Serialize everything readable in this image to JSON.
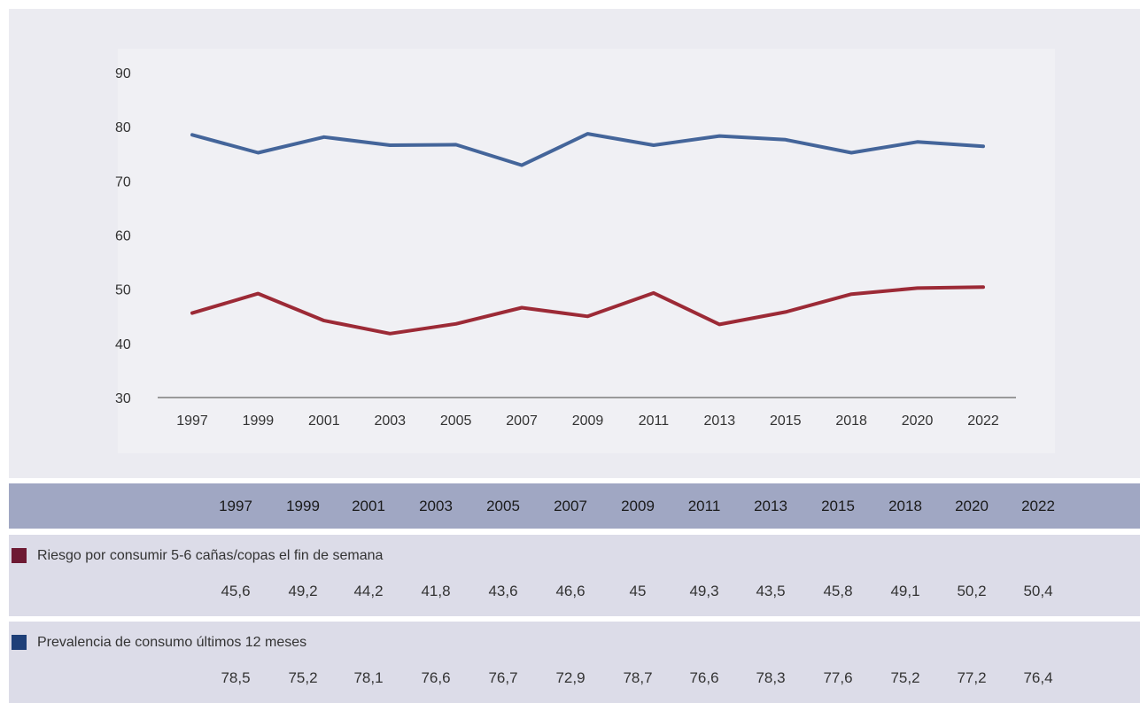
{
  "chart_data": {
    "type": "line",
    "x": [
      "1997",
      "1999",
      "2001",
      "2003",
      "2005",
      "2007",
      "2009",
      "2011",
      "2013",
      "2015",
      "2018",
      "2020",
      "2022"
    ],
    "ylim": [
      30,
      90
    ],
    "yticks": [
      "30",
      "40",
      "50",
      "60",
      "70",
      "80",
      "90"
    ],
    "grid": false,
    "series": [
      {
        "name": "Riesgo por consumir 5-6 cañas/copas el fin de semana",
        "color": "#9c2a36",
        "values": [
          45.6,
          49.2,
          44.2,
          41.8,
          43.6,
          46.6,
          45,
          49.3,
          43.5,
          45.8,
          49.1,
          50.2,
          50.4
        ]
      },
      {
        "name": "Prevalencia de consumo últimos 12 meses",
        "color": "#44659a",
        "values": [
          78.5,
          75.2,
          78.1,
          76.6,
          76.7,
          72.9,
          78.7,
          76.6,
          78.3,
          77.6,
          75.2,
          77.2,
          76.4
        ]
      }
    ]
  },
  "table": {
    "years": [
      "1997",
      "1999",
      "2001",
      "2003",
      "2005",
      "2007",
      "2009",
      "2011",
      "2013",
      "2015",
      "2018",
      "2020",
      "2022"
    ],
    "rows": [
      {
        "label": "Riesgo por consumir 5-6 cañas/copas el fin de semana",
        "swatch_color": "#6e1a33",
        "values": [
          "45,6",
          "49,2",
          "44,2",
          "41,8",
          "43,6",
          "46,6",
          "45",
          "49,3",
          "43,5",
          "45,8",
          "49,1",
          "50,2",
          "50,4"
        ]
      },
      {
        "label": "Prevalencia de consumo últimos 12 meses",
        "swatch_color": "#1e3f78",
        "values": [
          "78,5",
          "75,2",
          "78,1",
          "76,6",
          "76,7",
          "72,9",
          "78,7",
          "76,6",
          "78,3",
          "77,6",
          "75,2",
          "77,2",
          "76,4"
        ]
      }
    ]
  }
}
